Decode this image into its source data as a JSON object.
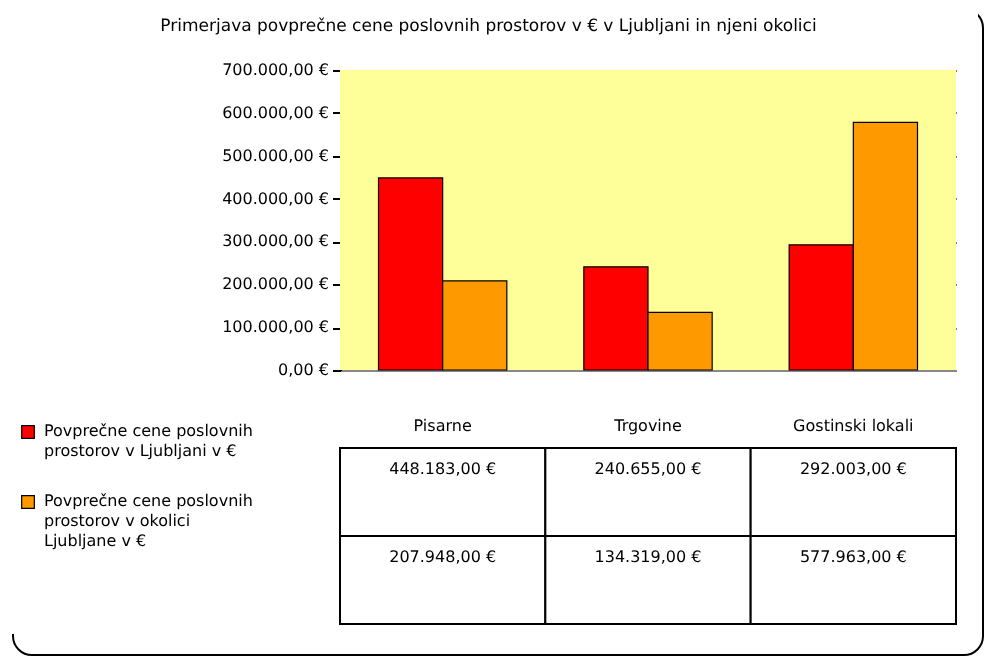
{
  "chart_data": {
    "type": "bar",
    "title": "Primerjava povprečne cene poslovnih prostorov v € v Ljubljani in njeni okolici",
    "categories": [
      "Pisarne",
      "Trgovine",
      "Gostinski lokali"
    ],
    "series": [
      {
        "name": "Povprečne cene poslovnih prostorov v Ljubljani v €",
        "color": "#ff0000",
        "values": [
          448183,
          240655,
          292003
        ],
        "value_labels": [
          "448.183,00 €",
          "240.655,00 €",
          "292.003,00 €"
        ]
      },
      {
        "name": "Povprečne cene poslovnih prostorov v okolici Ljubljane v €",
        "color": "#ff9900",
        "values": [
          207948,
          134319,
          577963
        ],
        "value_labels": [
          "207.948,00 €",
          "134.319,00 €",
          "577.963,00 €"
        ]
      }
    ],
    "ylim": [
      0,
      700000
    ],
    "yticks": [
      {
        "value": 0,
        "label": "0,00 €"
      },
      {
        "value": 100000,
        "label": "100.000,00 €"
      },
      {
        "value": 200000,
        "label": "200.000,00 €"
      },
      {
        "value": 300000,
        "label": "300.000,00 €"
      },
      {
        "value": 400000,
        "label": "400.000,00 €"
      },
      {
        "value": 500000,
        "label": "500.000,00 €"
      },
      {
        "value": 600000,
        "label": "600.000,00 €"
      },
      {
        "value": 700000,
        "label": "700.000,00 €"
      }
    ],
    "grid": "y",
    "legend": "bottom left"
  }
}
